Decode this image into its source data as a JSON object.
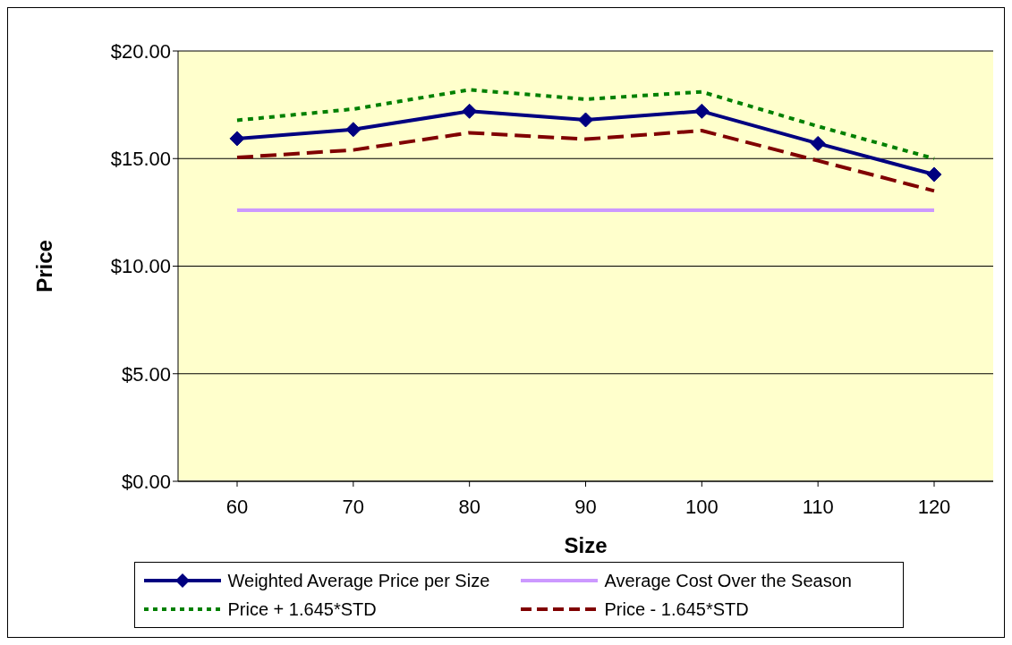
{
  "chart_data": {
    "type": "line",
    "xlabel": "Size",
    "ylabel": "Price",
    "categories": [
      "60",
      "70",
      "80",
      "90",
      "100",
      "110",
      "120"
    ],
    "series": [
      {
        "name": "Weighted Average Price per Size",
        "color": "#000080",
        "marker": "diamond",
        "line_style": "solid",
        "values": [
          15.93,
          16.35,
          17.2,
          16.8,
          17.2,
          15.7,
          14.26
        ]
      },
      {
        "name": "Average Cost Over the Season",
        "color": "#cc99ff",
        "marker": "none",
        "line_style": "solid",
        "values": [
          12.6,
          12.6,
          12.6,
          12.6,
          12.6,
          12.6,
          12.6
        ]
      },
      {
        "name": "Price + 1.645*STD",
        "color": "#008000",
        "marker": "none",
        "line_style": "dotted",
        "values": [
          16.78,
          17.3,
          18.2,
          17.76,
          18.1,
          16.5,
          15.0
        ]
      },
      {
        "name": "Price - 1.645*STD",
        "color": "#800000",
        "marker": "none",
        "line_style": "dashed",
        "values": [
          15.05,
          15.4,
          16.2,
          15.9,
          16.3,
          14.9,
          13.5
        ]
      }
    ],
    "ylim": [
      0,
      20
    ],
    "yticks": [
      {
        "value": 0,
        "label": "$0.00"
      },
      {
        "value": 5,
        "label": "$5.00"
      },
      {
        "value": 10,
        "label": "$10.00"
      },
      {
        "value": 15,
        "label": "$15.00"
      },
      {
        "value": 20,
        "label": "$20.00"
      }
    ],
    "grid": "y",
    "legend": "bottom"
  }
}
